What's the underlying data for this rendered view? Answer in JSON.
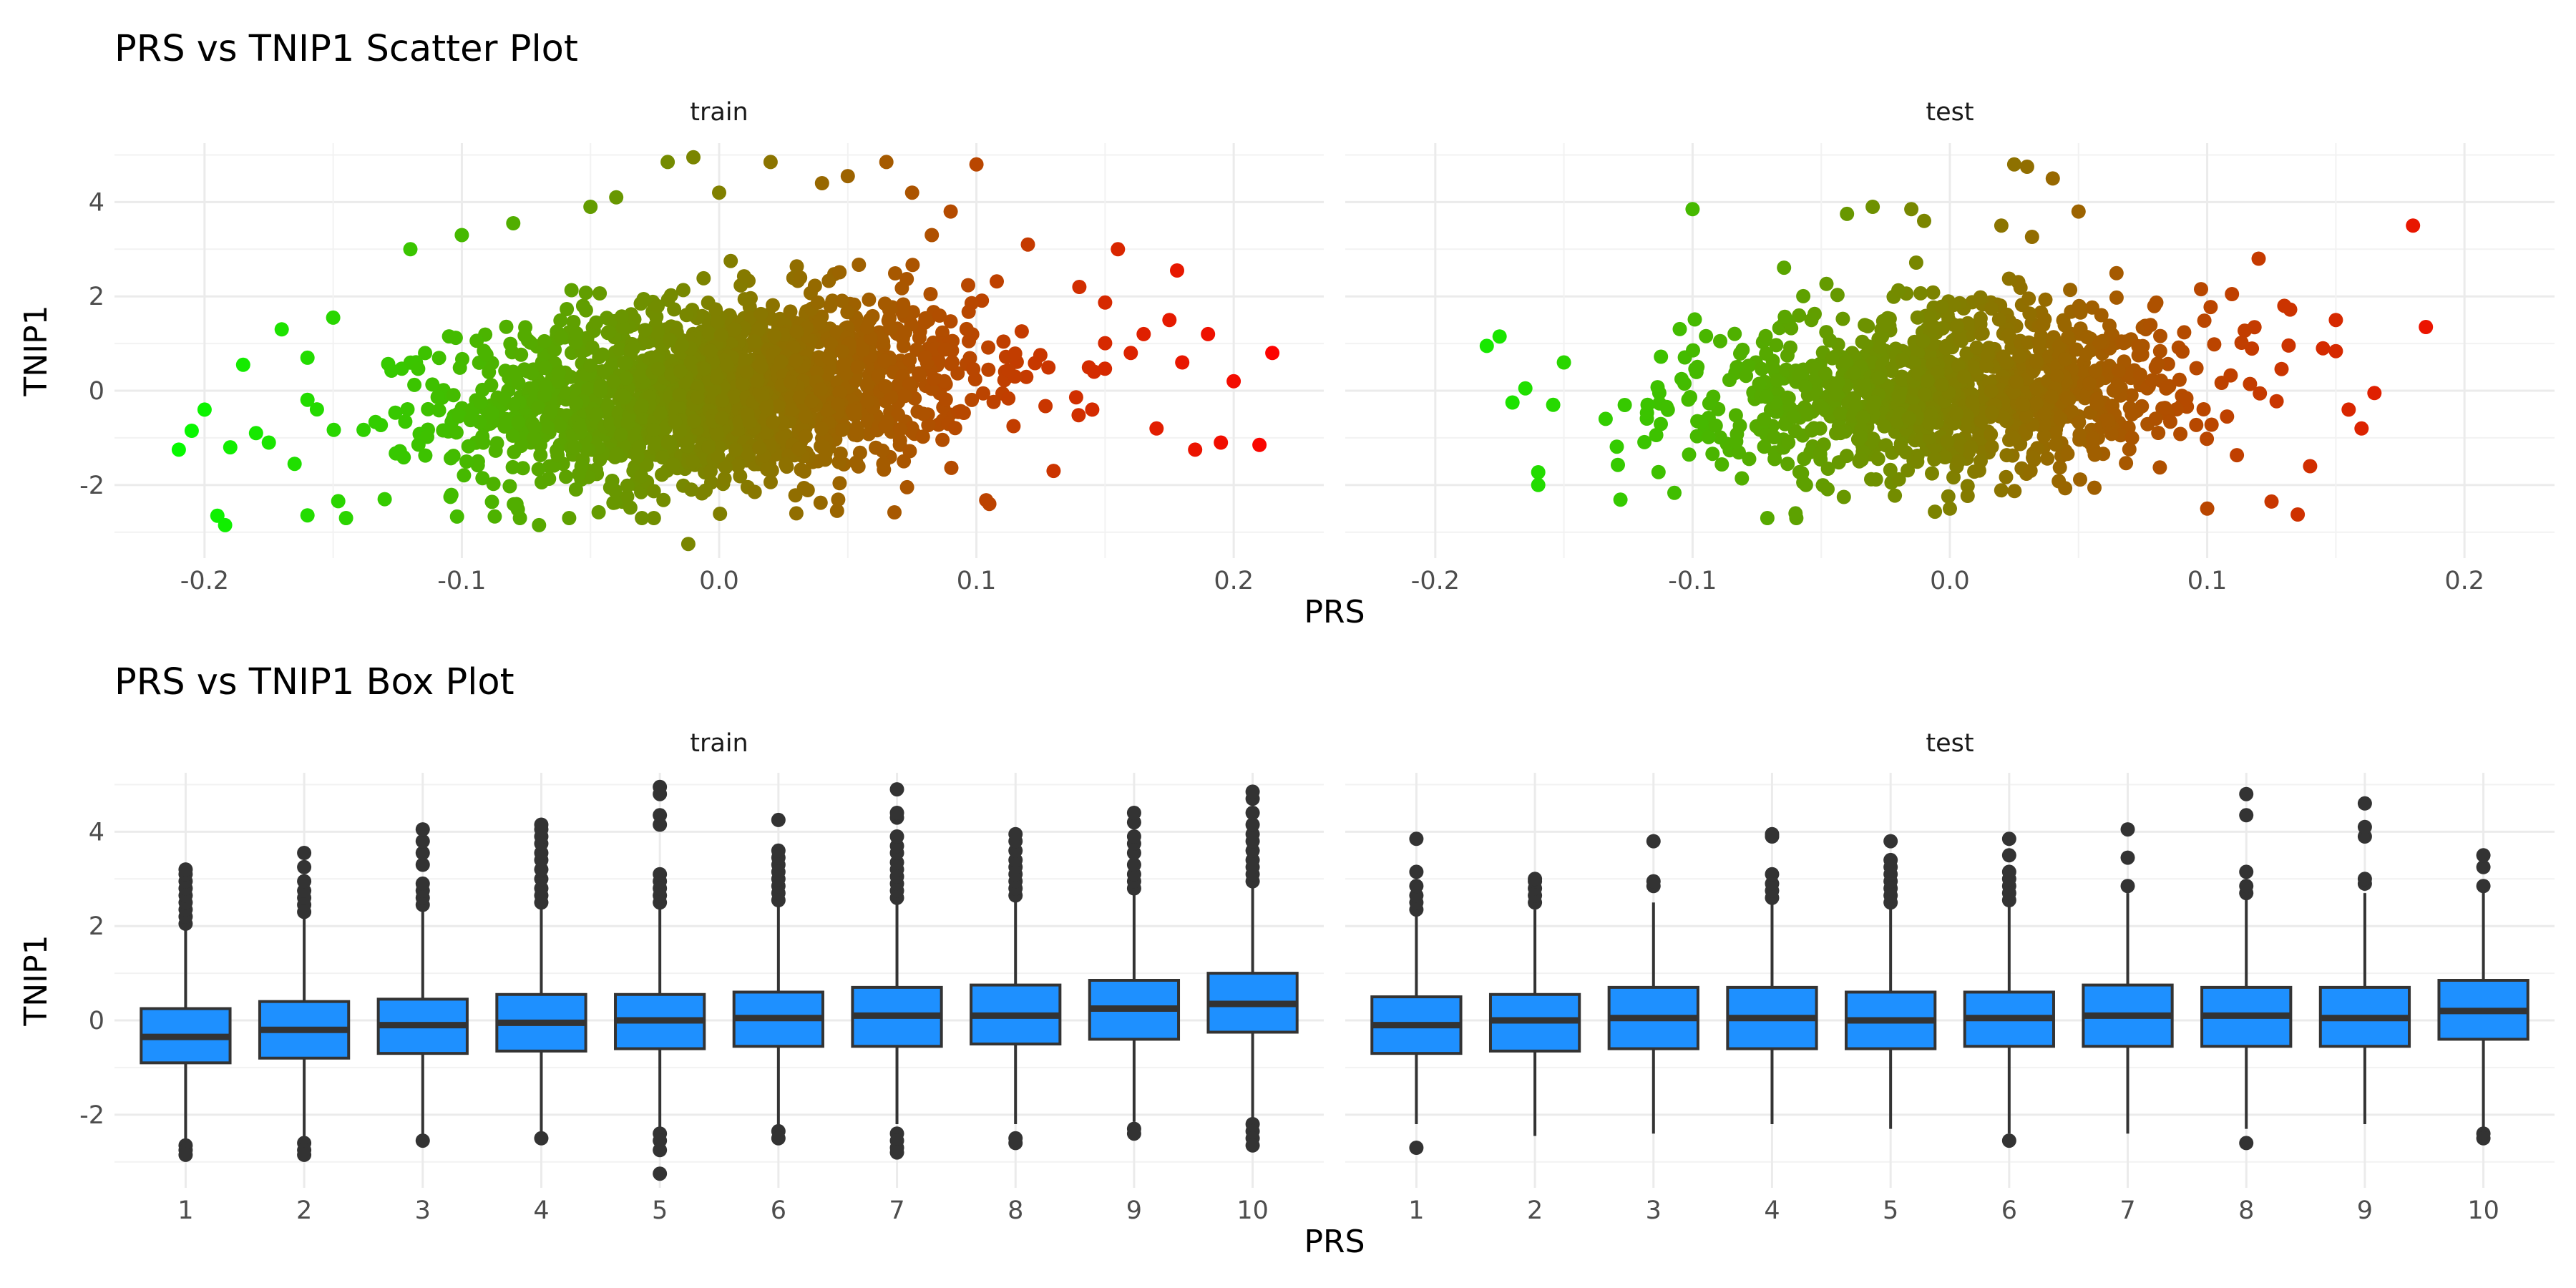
{
  "chart_data": [
    {
      "type": "scatter",
      "title": "PRS vs TNIP1 Scatter Plot",
      "xlabel": "PRS",
      "ylabel": "TNIP1",
      "facets": [
        "train",
        "test"
      ],
      "xlim": [
        -0.235,
        0.235
      ],
      "ylim": [
        -3.55,
        5.25
      ],
      "x_ticks": [
        -0.2,
        -0.1,
        0.0,
        0.1,
        0.2
      ],
      "x_tick_labels": [
        "-0.2",
        "-0.1",
        "0.0",
        "0.1",
        "0.2"
      ],
      "y_ticks": [
        -2,
        0,
        2,
        4
      ],
      "y_tick_labels": [
        "-2",
        "0",
        "2",
        "4"
      ],
      "grid": true,
      "color_scale": {
        "low": "#00ff00",
        "high": "#ff0000",
        "mapped_to": "PRS",
        "range": [
          -0.22,
          0.22
        ]
      },
      "trend": {
        "train": {
          "intercept": 0.0,
          "slope": 4.0
        },
        "test": {
          "intercept": 0.0,
          "slope": 2.8
        }
      },
      "series": [
        {
          "facet": "train",
          "n_core": 1800,
          "core_sd": {
            "x": 0.05,
            "y": 0.95
          },
          "points": [
            [
              -0.21,
              -1.25
            ],
            [
              -0.205,
              -0.85
            ],
            [
              -0.2,
              -0.4
            ],
            [
              -0.195,
              -2.65
            ],
            [
              -0.192,
              -2.85
            ],
            [
              -0.19,
              -1.2
            ],
            [
              -0.185,
              0.55
            ],
            [
              -0.18,
              -0.9
            ],
            [
              -0.175,
              -1.1
            ],
            [
              -0.17,
              1.3
            ],
            [
              -0.165,
              -1.55
            ],
            [
              -0.16,
              0.7
            ],
            [
              -0.15,
              1.55
            ],
            [
              -0.145,
              -2.7
            ],
            [
              -0.13,
              -2.3
            ],
            [
              -0.12,
              3.0
            ],
            [
              -0.1,
              3.3
            ],
            [
              -0.08,
              3.55
            ],
            [
              -0.07,
              -2.85
            ],
            [
              -0.05,
              3.9
            ],
            [
              -0.04,
              4.1
            ],
            [
              -0.03,
              -2.7
            ],
            [
              -0.02,
              4.85
            ],
            [
              -0.01,
              4.95
            ],
            [
              -0.012,
              -3.25
            ],
            [
              0.0,
              4.2
            ],
            [
              0.02,
              4.85
            ],
            [
              0.03,
              -2.6
            ],
            [
              0.04,
              4.4
            ],
            [
              0.05,
              4.55
            ],
            [
              0.065,
              4.85
            ],
            [
              0.075,
              4.2
            ],
            [
              0.09,
              3.8
            ],
            [
              0.1,
              4.8
            ],
            [
              0.105,
              -2.4
            ],
            [
              0.12,
              3.1
            ],
            [
              0.13,
              -1.7
            ],
            [
              0.14,
              2.2
            ],
            [
              0.145,
              -0.4
            ],
            [
              0.155,
              3.0
            ],
            [
              0.16,
              0.8
            ],
            [
              0.165,
              1.2
            ],
            [
              0.17,
              -0.8
            ],
            [
              0.175,
              1.5
            ],
            [
              0.178,
              2.55
            ],
            [
              0.18,
              0.6
            ],
            [
              0.185,
              -1.25
            ],
            [
              0.19,
              1.2
            ],
            [
              0.195,
              -1.1
            ],
            [
              0.2,
              0.2
            ],
            [
              0.21,
              -1.15
            ],
            [
              0.215,
              0.8
            ]
          ]
        },
        {
          "facet": "test",
          "n_core": 1100,
          "core_sd": {
            "x": 0.05,
            "y": 0.9
          },
          "points": [
            [
              -0.18,
              0.95
            ],
            [
              -0.175,
              1.15
            ],
            [
              -0.17,
              -0.25
            ],
            [
              -0.165,
              0.05
            ],
            [
              -0.16,
              -2.0
            ],
            [
              -0.15,
              0.6
            ],
            [
              -0.1,
              3.85
            ],
            [
              -0.06,
              -2.6
            ],
            [
              -0.04,
              3.75
            ],
            [
              -0.03,
              3.9
            ],
            [
              -0.015,
              3.85
            ],
            [
              -0.01,
              3.6
            ],
            [
              0.0,
              -2.5
            ],
            [
              0.02,
              3.5
            ],
            [
              0.025,
              4.8
            ],
            [
              0.03,
              4.75
            ],
            [
              0.04,
              4.5
            ],
            [
              0.05,
              3.8
            ],
            [
              0.1,
              -2.5
            ],
            [
              0.12,
              2.8
            ],
            [
              0.125,
              -2.35
            ],
            [
              0.13,
              1.8
            ],
            [
              0.14,
              -1.6
            ],
            [
              0.145,
              0.9
            ],
            [
              0.15,
              1.5
            ],
            [
              0.155,
              -0.4
            ],
            [
              0.16,
              -0.8
            ],
            [
              0.165,
              -0.05
            ],
            [
              0.18,
              3.5
            ],
            [
              0.185,
              1.35
            ]
          ]
        }
      ]
    },
    {
      "type": "box",
      "title": "PRS vs TNIP1 Box Plot",
      "xlabel": "PRS",
      "ylabel": "TNIP1",
      "facets": [
        "train",
        "test"
      ],
      "categories": [
        "1",
        "2",
        "3",
        "4",
        "5",
        "6",
        "7",
        "8",
        "9",
        "10"
      ],
      "ylim": [
        -3.55,
        5.25
      ],
      "y_ticks": [
        -2,
        0,
        2,
        4
      ],
      "y_tick_labels": [
        "-2",
        "0",
        "2",
        "4"
      ],
      "grid": true,
      "box_color": "#1e90ff",
      "line_color": "#333333",
      "series": [
        {
          "facet": "train",
          "boxes": [
            {
              "q1": -0.9,
              "median": -0.35,
              "q3": 0.25,
              "lower": -2.55,
              "upper": 1.95,
              "outliers": [
                2.05,
                2.2,
                2.35,
                2.5,
                2.65,
                2.8,
                2.95,
                3.1,
                3.2,
                -2.65,
                -2.75,
                -2.85
              ]
            },
            {
              "q1": -0.8,
              "median": -0.2,
              "q3": 0.4,
              "lower": -2.5,
              "upper": 2.2,
              "outliers": [
                2.3,
                2.45,
                2.6,
                2.75,
                2.95,
                3.25,
                3.55,
                -2.6,
                -2.75,
                -2.85
              ]
            },
            {
              "q1": -0.7,
              "median": -0.1,
              "q3": 0.45,
              "lower": -2.45,
              "upper": 2.35,
              "outliers": [
                2.45,
                2.6,
                2.75,
                2.9,
                3.3,
                3.55,
                3.8,
                4.05,
                -2.55
              ]
            },
            {
              "q1": -0.65,
              "median": -0.05,
              "q3": 0.55,
              "lower": -2.4,
              "upper": 2.4,
              "outliers": [
                2.5,
                2.65,
                2.8,
                3.0,
                3.2,
                3.4,
                3.55,
                3.75,
                3.9,
                4.05,
                4.15,
                -2.5
              ]
            },
            {
              "q1": -0.6,
              "median": 0.0,
              "q3": 0.55,
              "lower": -2.3,
              "upper": 2.4,
              "outliers": [
                2.5,
                2.65,
                2.8,
                2.95,
                3.1,
                4.15,
                4.35,
                4.8,
                4.95,
                -2.4,
                -2.55,
                -2.75,
                -3.25
              ]
            },
            {
              "q1": -0.55,
              "median": 0.05,
              "q3": 0.6,
              "lower": -2.25,
              "upper": 2.45,
              "outliers": [
                2.55,
                2.7,
                2.85,
                3.0,
                3.15,
                3.3,
                3.45,
                3.6,
                4.25,
                -2.35,
                -2.5
              ]
            },
            {
              "q1": -0.55,
              "median": 0.1,
              "q3": 0.7,
              "lower": -2.2,
              "upper": 2.5,
              "outliers": [
                2.6,
                2.75,
                2.9,
                3.05,
                3.2,
                3.35,
                3.55,
                3.7,
                3.9,
                4.3,
                4.4,
                4.9,
                -2.4,
                -2.55,
                -2.7,
                -2.8
              ]
            },
            {
              "q1": -0.5,
              "median": 0.1,
              "q3": 0.75,
              "lower": -2.2,
              "upper": 2.55,
              "outliers": [
                2.65,
                2.8,
                2.95,
                3.1,
                3.25,
                3.4,
                3.6,
                3.8,
                3.95,
                -2.5,
                -2.6
              ]
            },
            {
              "q1": -0.4,
              "median": 0.25,
              "q3": 0.85,
              "lower": -2.15,
              "upper": 2.7,
              "outliers": [
                2.8,
                2.95,
                3.1,
                3.3,
                3.55,
                3.75,
                3.9,
                4.2,
                4.4,
                -2.3,
                -2.4
              ]
            },
            {
              "q1": -0.25,
              "median": 0.35,
              "q3": 1.0,
              "lower": -2.1,
              "upper": 2.85,
              "outliers": [
                2.95,
                3.1,
                3.25,
                3.4,
                3.6,
                3.8,
                3.95,
                4.15,
                4.4,
                4.7,
                4.85,
                -2.2,
                -2.35,
                -2.5,
                -2.65
              ]
            }
          ]
        },
        {
          "facet": "test",
          "boxes": [
            {
              "q1": -0.7,
              "median": -0.1,
              "q3": 0.5,
              "lower": -2.2,
              "upper": 2.25,
              "outliers": [
                2.35,
                2.5,
                2.65,
                2.85,
                3.15,
                3.85,
                -2.7
              ]
            },
            {
              "q1": -0.65,
              "median": 0.0,
              "q3": 0.55,
              "lower": -2.45,
              "upper": 2.35,
              "outliers": [
                2.5,
                2.65,
                2.8,
                2.95,
                3.0
              ]
            },
            {
              "q1": -0.6,
              "median": 0.05,
              "q3": 0.7,
              "lower": -2.4,
              "upper": 2.5,
              "outliers": [
                2.85,
                2.95,
                3.8
              ]
            },
            {
              "q1": -0.6,
              "median": 0.05,
              "q3": 0.7,
              "lower": -2.2,
              "upper": 2.5,
              "outliers": [
                2.6,
                2.75,
                2.9,
                3.1,
                3.9,
                3.95
              ]
            },
            {
              "q1": -0.6,
              "median": 0.0,
              "q3": 0.6,
              "lower": -2.3,
              "upper": 2.4,
              "outliers": [
                2.5,
                2.65,
                2.8,
                2.95,
                3.1,
                3.25,
                3.4,
                3.8
              ]
            },
            {
              "q1": -0.55,
              "median": 0.05,
              "q3": 0.6,
              "lower": -2.4,
              "upper": 2.45,
              "outliers": [
                2.55,
                2.7,
                2.85,
                3.0,
                3.15,
                3.5,
                3.85,
                -2.55
              ]
            },
            {
              "q1": -0.55,
              "median": 0.1,
              "q3": 0.75,
              "lower": -2.4,
              "upper": 2.7,
              "outliers": [
                2.85,
                3.45,
                4.05
              ]
            },
            {
              "q1": -0.55,
              "median": 0.1,
              "q3": 0.7,
              "lower": -2.3,
              "upper": 2.6,
              "outliers": [
                2.7,
                2.85,
                3.15,
                4.35,
                4.8,
                -2.6
              ]
            },
            {
              "q1": -0.55,
              "median": 0.05,
              "q3": 0.7,
              "lower": -2.2,
              "upper": 2.7,
              "outliers": [
                2.9,
                3.0,
                3.9,
                4.1,
                4.6
              ]
            },
            {
              "q1": -0.4,
              "median": 0.2,
              "q3": 0.85,
              "lower": -2.3,
              "upper": 2.75,
              "outliers": [
                2.85,
                3.25,
                3.5,
                -2.4,
                -2.5
              ]
            }
          ]
        }
      ]
    }
  ]
}
